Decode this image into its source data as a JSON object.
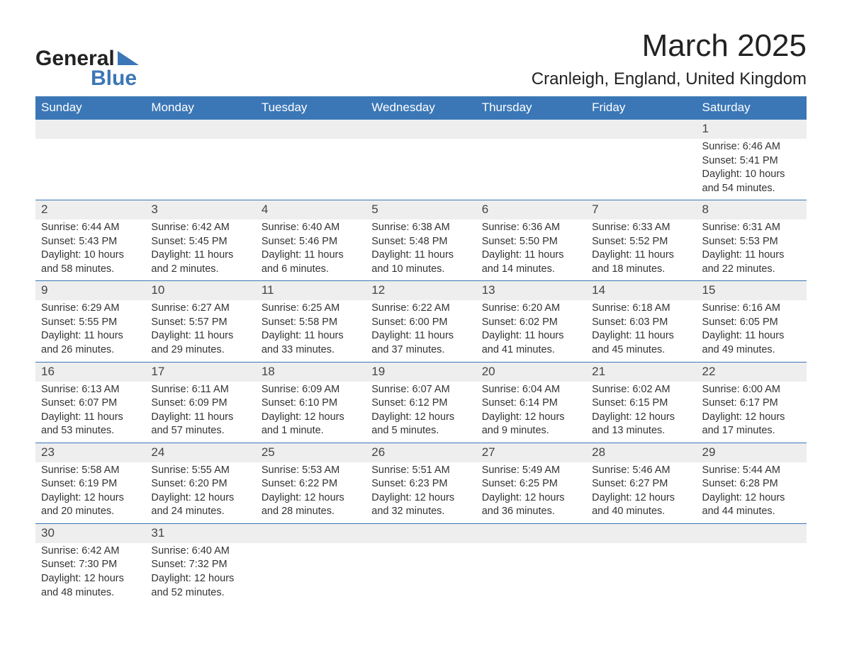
{
  "logo": {
    "text_top": "General",
    "text_bottom": "Blue",
    "triangle_color": "#3b77b6"
  },
  "title": {
    "month": "March 2025",
    "location": "Cranleigh, England, United Kingdom"
  },
  "colors": {
    "header_bg": "#3b77b6",
    "header_fg": "#ffffff",
    "daynum_bg": "#eeeeee",
    "row_divider": "#3b77b6"
  },
  "day_labels": [
    "Sunday",
    "Monday",
    "Tuesday",
    "Wednesday",
    "Thursday",
    "Friday",
    "Saturday"
  ],
  "weeks": [
    [
      null,
      null,
      null,
      null,
      null,
      null,
      {
        "n": "1",
        "sunrise": "Sunrise: 6:46 AM",
        "sunset": "Sunset: 5:41 PM",
        "daylight": "Daylight: 10 hours and 54 minutes."
      }
    ],
    [
      {
        "n": "2",
        "sunrise": "Sunrise: 6:44 AM",
        "sunset": "Sunset: 5:43 PM",
        "daylight": "Daylight: 10 hours and 58 minutes."
      },
      {
        "n": "3",
        "sunrise": "Sunrise: 6:42 AM",
        "sunset": "Sunset: 5:45 PM",
        "daylight": "Daylight: 11 hours and 2 minutes."
      },
      {
        "n": "4",
        "sunrise": "Sunrise: 6:40 AM",
        "sunset": "Sunset: 5:46 PM",
        "daylight": "Daylight: 11 hours and 6 minutes."
      },
      {
        "n": "5",
        "sunrise": "Sunrise: 6:38 AM",
        "sunset": "Sunset: 5:48 PM",
        "daylight": "Daylight: 11 hours and 10 minutes."
      },
      {
        "n": "6",
        "sunrise": "Sunrise: 6:36 AM",
        "sunset": "Sunset: 5:50 PM",
        "daylight": "Daylight: 11 hours and 14 minutes."
      },
      {
        "n": "7",
        "sunrise": "Sunrise: 6:33 AM",
        "sunset": "Sunset: 5:52 PM",
        "daylight": "Daylight: 11 hours and 18 minutes."
      },
      {
        "n": "8",
        "sunrise": "Sunrise: 6:31 AM",
        "sunset": "Sunset: 5:53 PM",
        "daylight": "Daylight: 11 hours and 22 minutes."
      }
    ],
    [
      {
        "n": "9",
        "sunrise": "Sunrise: 6:29 AM",
        "sunset": "Sunset: 5:55 PM",
        "daylight": "Daylight: 11 hours and 26 minutes."
      },
      {
        "n": "10",
        "sunrise": "Sunrise: 6:27 AM",
        "sunset": "Sunset: 5:57 PM",
        "daylight": "Daylight: 11 hours and 29 minutes."
      },
      {
        "n": "11",
        "sunrise": "Sunrise: 6:25 AM",
        "sunset": "Sunset: 5:58 PM",
        "daylight": "Daylight: 11 hours and 33 minutes."
      },
      {
        "n": "12",
        "sunrise": "Sunrise: 6:22 AM",
        "sunset": "Sunset: 6:00 PM",
        "daylight": "Daylight: 11 hours and 37 minutes."
      },
      {
        "n": "13",
        "sunrise": "Sunrise: 6:20 AM",
        "sunset": "Sunset: 6:02 PM",
        "daylight": "Daylight: 11 hours and 41 minutes."
      },
      {
        "n": "14",
        "sunrise": "Sunrise: 6:18 AM",
        "sunset": "Sunset: 6:03 PM",
        "daylight": "Daylight: 11 hours and 45 minutes."
      },
      {
        "n": "15",
        "sunrise": "Sunrise: 6:16 AM",
        "sunset": "Sunset: 6:05 PM",
        "daylight": "Daylight: 11 hours and 49 minutes."
      }
    ],
    [
      {
        "n": "16",
        "sunrise": "Sunrise: 6:13 AM",
        "sunset": "Sunset: 6:07 PM",
        "daylight": "Daylight: 11 hours and 53 minutes."
      },
      {
        "n": "17",
        "sunrise": "Sunrise: 6:11 AM",
        "sunset": "Sunset: 6:09 PM",
        "daylight": "Daylight: 11 hours and 57 minutes."
      },
      {
        "n": "18",
        "sunrise": "Sunrise: 6:09 AM",
        "sunset": "Sunset: 6:10 PM",
        "daylight": "Daylight: 12 hours and 1 minute."
      },
      {
        "n": "19",
        "sunrise": "Sunrise: 6:07 AM",
        "sunset": "Sunset: 6:12 PM",
        "daylight": "Daylight: 12 hours and 5 minutes."
      },
      {
        "n": "20",
        "sunrise": "Sunrise: 6:04 AM",
        "sunset": "Sunset: 6:14 PM",
        "daylight": "Daylight: 12 hours and 9 minutes."
      },
      {
        "n": "21",
        "sunrise": "Sunrise: 6:02 AM",
        "sunset": "Sunset: 6:15 PM",
        "daylight": "Daylight: 12 hours and 13 minutes."
      },
      {
        "n": "22",
        "sunrise": "Sunrise: 6:00 AM",
        "sunset": "Sunset: 6:17 PM",
        "daylight": "Daylight: 12 hours and 17 minutes."
      }
    ],
    [
      {
        "n": "23",
        "sunrise": "Sunrise: 5:58 AM",
        "sunset": "Sunset: 6:19 PM",
        "daylight": "Daylight: 12 hours and 20 minutes."
      },
      {
        "n": "24",
        "sunrise": "Sunrise: 5:55 AM",
        "sunset": "Sunset: 6:20 PM",
        "daylight": "Daylight: 12 hours and 24 minutes."
      },
      {
        "n": "25",
        "sunrise": "Sunrise: 5:53 AM",
        "sunset": "Sunset: 6:22 PM",
        "daylight": "Daylight: 12 hours and 28 minutes."
      },
      {
        "n": "26",
        "sunrise": "Sunrise: 5:51 AM",
        "sunset": "Sunset: 6:23 PM",
        "daylight": "Daylight: 12 hours and 32 minutes."
      },
      {
        "n": "27",
        "sunrise": "Sunrise: 5:49 AM",
        "sunset": "Sunset: 6:25 PM",
        "daylight": "Daylight: 12 hours and 36 minutes."
      },
      {
        "n": "28",
        "sunrise": "Sunrise: 5:46 AM",
        "sunset": "Sunset: 6:27 PM",
        "daylight": "Daylight: 12 hours and 40 minutes."
      },
      {
        "n": "29",
        "sunrise": "Sunrise: 5:44 AM",
        "sunset": "Sunset: 6:28 PM",
        "daylight": "Daylight: 12 hours and 44 minutes."
      }
    ],
    [
      {
        "n": "30",
        "sunrise": "Sunrise: 6:42 AM",
        "sunset": "Sunset: 7:30 PM",
        "daylight": "Daylight: 12 hours and 48 minutes."
      },
      {
        "n": "31",
        "sunrise": "Sunrise: 6:40 AM",
        "sunset": "Sunset: 7:32 PM",
        "daylight": "Daylight: 12 hours and 52 minutes."
      },
      null,
      null,
      null,
      null,
      null
    ]
  ]
}
